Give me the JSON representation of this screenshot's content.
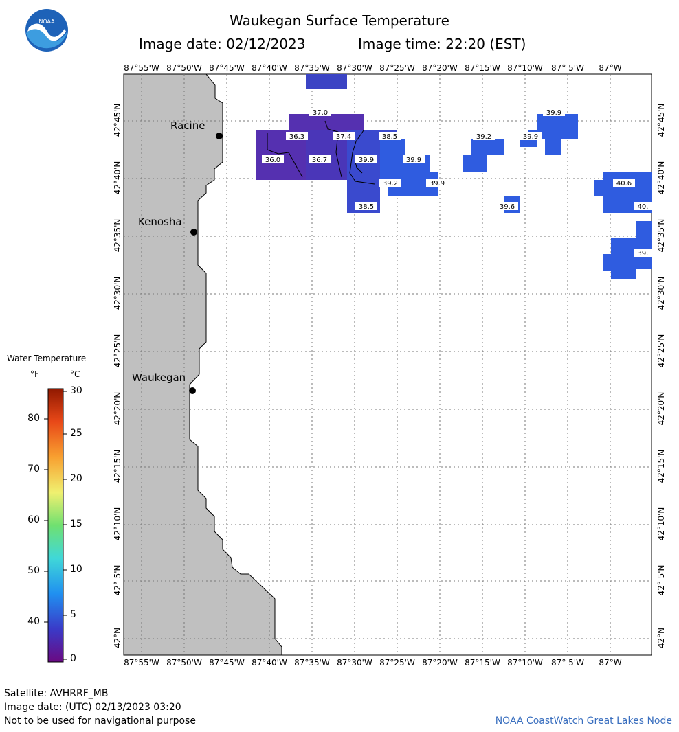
{
  "header": {
    "title": "Waukegan Surface Temperature",
    "image_date": "Image date: 02/12/2023",
    "image_time": "Image time: 22:20 (EST)"
  },
  "logo": {
    "text": "NOAA",
    "icon": "noaa-logo-icon"
  },
  "axes": {
    "lon_labels": [
      "87°55'W",
      "87°50'W",
      "87°45'W",
      "87°40'W",
      "87°35'W",
      "87°30'W",
      "87°25'W",
      "87°20'W",
      "87°15'W",
      "87°10'W",
      "87° 5'W",
      "87°W"
    ],
    "lat_labels": [
      "42°45'N",
      "42°40'N",
      "42°35'N",
      "42°30'N",
      "42°25'N",
      "42°20'N",
      "42°15'N",
      "42°10'N",
      "42° 5'N",
      "42°N"
    ]
  },
  "cities": [
    {
      "name": "Racine"
    },
    {
      "name": "Kenosha"
    },
    {
      "name": "Waukegan"
    }
  ],
  "temperature_labels": [
    "37.0",
    "36.3",
    "37.4",
    "38.5",
    "36.0",
    "36.7",
    "39.9",
    "39.9",
    "39.2",
    "39.9",
    "38.5",
    "39.2",
    "39.9",
    "39.9",
    "39.6",
    "40.6",
    "40.",
    "39."
  ],
  "legend": {
    "title": "Water Temperature",
    "unit_f": "°F",
    "unit_c": "°C",
    "f_ticks": [
      "80",
      "70",
      "60",
      "50",
      "40"
    ],
    "c_ticks": [
      "30",
      "25",
      "20",
      "15",
      "10",
      "5",
      "0"
    ]
  },
  "footer": {
    "satellite": "Satellite: AVHRRF_MB",
    "utc_date": "Image date: (UTC) 02/13/2023  03:20",
    "disclaimer": "Not to be used for navigational purpose",
    "credit": "NOAA CoastWatch Great Lakes Node"
  },
  "colors": {
    "land": "#c0c0c0",
    "water_cold": "#5b2fb0",
    "water_mid": "#3b46c8",
    "water_warm": "#2f5ce0",
    "credit": "#3a6fbf"
  }
}
